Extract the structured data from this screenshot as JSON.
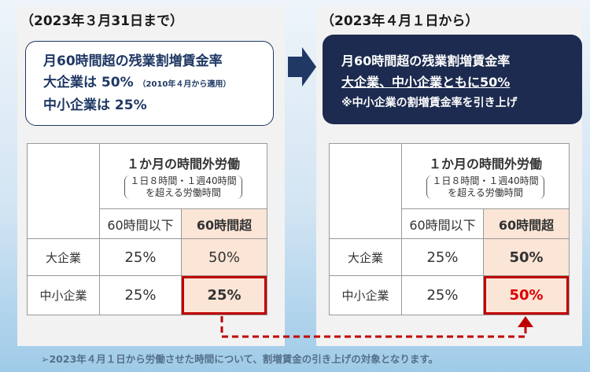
{
  "left": {
    "heading": "（2023年３月31日まで）",
    "summary": [
      "月60時間超の残業割増賃金率",
      "大企業は 50%",
      "（2010年４月から適用）",
      "中小企業は 25%"
    ],
    "table": {
      "header": "１か月の時間外労働",
      "note_line1": "１日８時間・１週40時間",
      "note_line2": "を超える労働時間",
      "columns": [
        "60時間以下",
        "60時間超"
      ],
      "rows": [
        [
          "大企業",
          "25%",
          "50%"
        ],
        [
          "中小企業",
          "25%",
          "25%"
        ]
      ]
    }
  },
  "right": {
    "heading": "（2023年４月１日から）",
    "summary": [
      "月60時間超の残業割増賃金率",
      "大企業、中小企業ともに50%",
      "※中小企業の割増賃金率を引き上げ"
    ],
    "table": {
      "header": "１か月の時間外労働",
      "note_line1": "１日８時間・１週40時間",
      "note_line2": "を超える労働時間",
      "columns": [
        "60時間以下",
        "60時間超"
      ],
      "rows": [
        [
          "大企業",
          "25%",
          "50%"
        ],
        [
          "中小企業",
          "25%",
          "50%"
        ]
      ]
    }
  },
  "footer": "➢2023年４月１日から労働させた時間について、割増賃金の引き上げの対象となります。"
}
